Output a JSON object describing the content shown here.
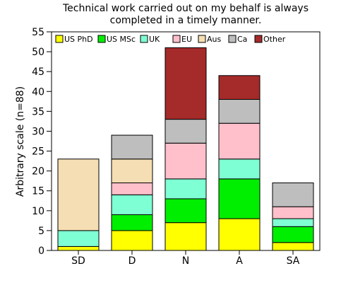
{
  "chart_data": {
    "type": "bar",
    "stacked": true,
    "title_lines": [
      "Technical work carried out on my behalf is always",
      "completed in a timely manner."
    ],
    "xlabel": "",
    "ylabel": "Arbitrary scale (n=88)",
    "ylim": [
      0,
      55
    ],
    "yticks": [
      0,
      5,
      10,
      15,
      20,
      25,
      30,
      35,
      40,
      45,
      50,
      55
    ],
    "categories": [
      "SD",
      "D",
      "N",
      "A",
      "SA"
    ],
    "legend_position": "top",
    "grid": false,
    "series": [
      {
        "name": "US PhD",
        "color": "#ffff00",
        "values": [
          1,
          5,
          7,
          8,
          2
        ]
      },
      {
        "name": "US MSc",
        "color": "#00ee00",
        "values": [
          0,
          4,
          6,
          10,
          4
        ]
      },
      {
        "name": "UK",
        "color": "#7fffd4",
        "values": [
          4,
          5,
          5,
          5,
          2
        ]
      },
      {
        "name": "EU",
        "color": "#ffc0cb",
        "values": [
          0,
          3,
          9,
          9,
          3
        ]
      },
      {
        "name": "Aus",
        "color": "#f5deb3",
        "values": [
          18,
          6,
          0,
          0,
          0
        ]
      },
      {
        "name": "Ca",
        "color": "#bebebe",
        "values": [
          0,
          6,
          6,
          6,
          6
        ]
      },
      {
        "name": "Other",
        "color": "#a52a2a",
        "values": [
          0,
          0,
          18,
          6,
          0
        ]
      }
    ]
  }
}
